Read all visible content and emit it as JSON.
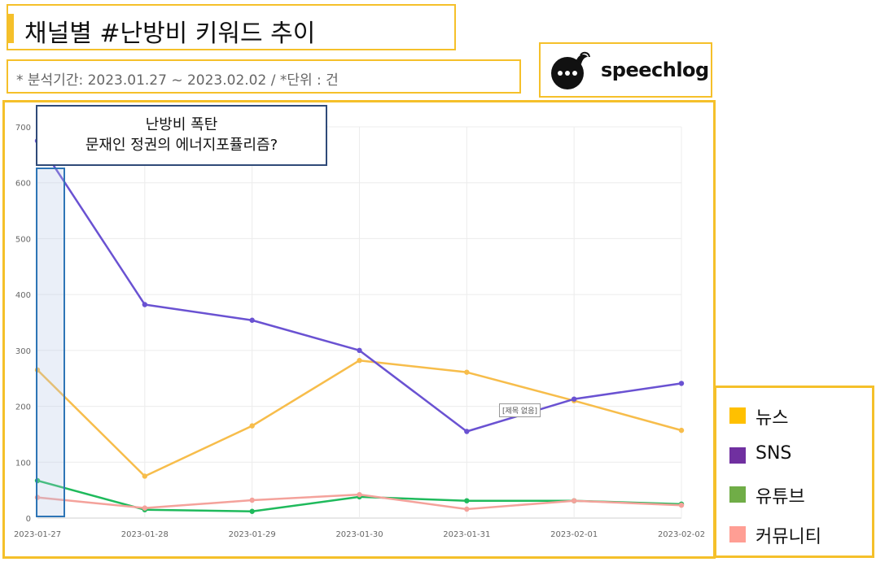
{
  "header": {
    "title": "채널별 #난방비 키워드 추이",
    "subtitle": "* 분석기간: 2023.01.27 ~ 2023.02.02 / *단위 : 건"
  },
  "logo": {
    "text": "speechlog"
  },
  "callout": {
    "line1": "난방비 폭탄",
    "line2": "문재인 정권의 에너지포퓰리즘?"
  },
  "tooltip": {
    "text": "[제목 없음]"
  },
  "legend": {
    "items": [
      {
        "label": "뉴스",
        "color": "#ffc000"
      },
      {
        "label": "SNS",
        "color": "#7030a0"
      },
      {
        "label": "유튜브",
        "color": "#70ad47"
      },
      {
        "label": "커뮤니티",
        "color": "#ff9e94"
      }
    ]
  },
  "chart_data": {
    "type": "line",
    "categories": [
      "2023-01-27",
      "2023-01-28",
      "2023-01-29",
      "2023-01-30",
      "2023-01-31",
      "2023-02-01",
      "2023-02-02"
    ],
    "yticks": [
      0,
      100,
      200,
      300,
      400,
      500,
      600,
      700
    ],
    "ylim": [
      0,
      700
    ],
    "grid": true,
    "series": [
      {
        "name": "뉴스",
        "color": "#f7bd4b",
        "values": [
          265,
          75,
          165,
          282,
          261,
          210,
          157
        ]
      },
      {
        "name": "SNS",
        "color": "#6a52d2",
        "values": [
          675,
          382,
          354,
          300,
          155,
          213,
          241
        ]
      },
      {
        "name": "유튜브",
        "color": "#1fba5c",
        "values": [
          67,
          15,
          12,
          38,
          31,
          31,
          25
        ]
      },
      {
        "name": "커뮤니티",
        "color": "#f4a29b",
        "values": [
          37,
          18,
          32,
          42,
          16,
          31,
          23
        ]
      }
    ]
  }
}
